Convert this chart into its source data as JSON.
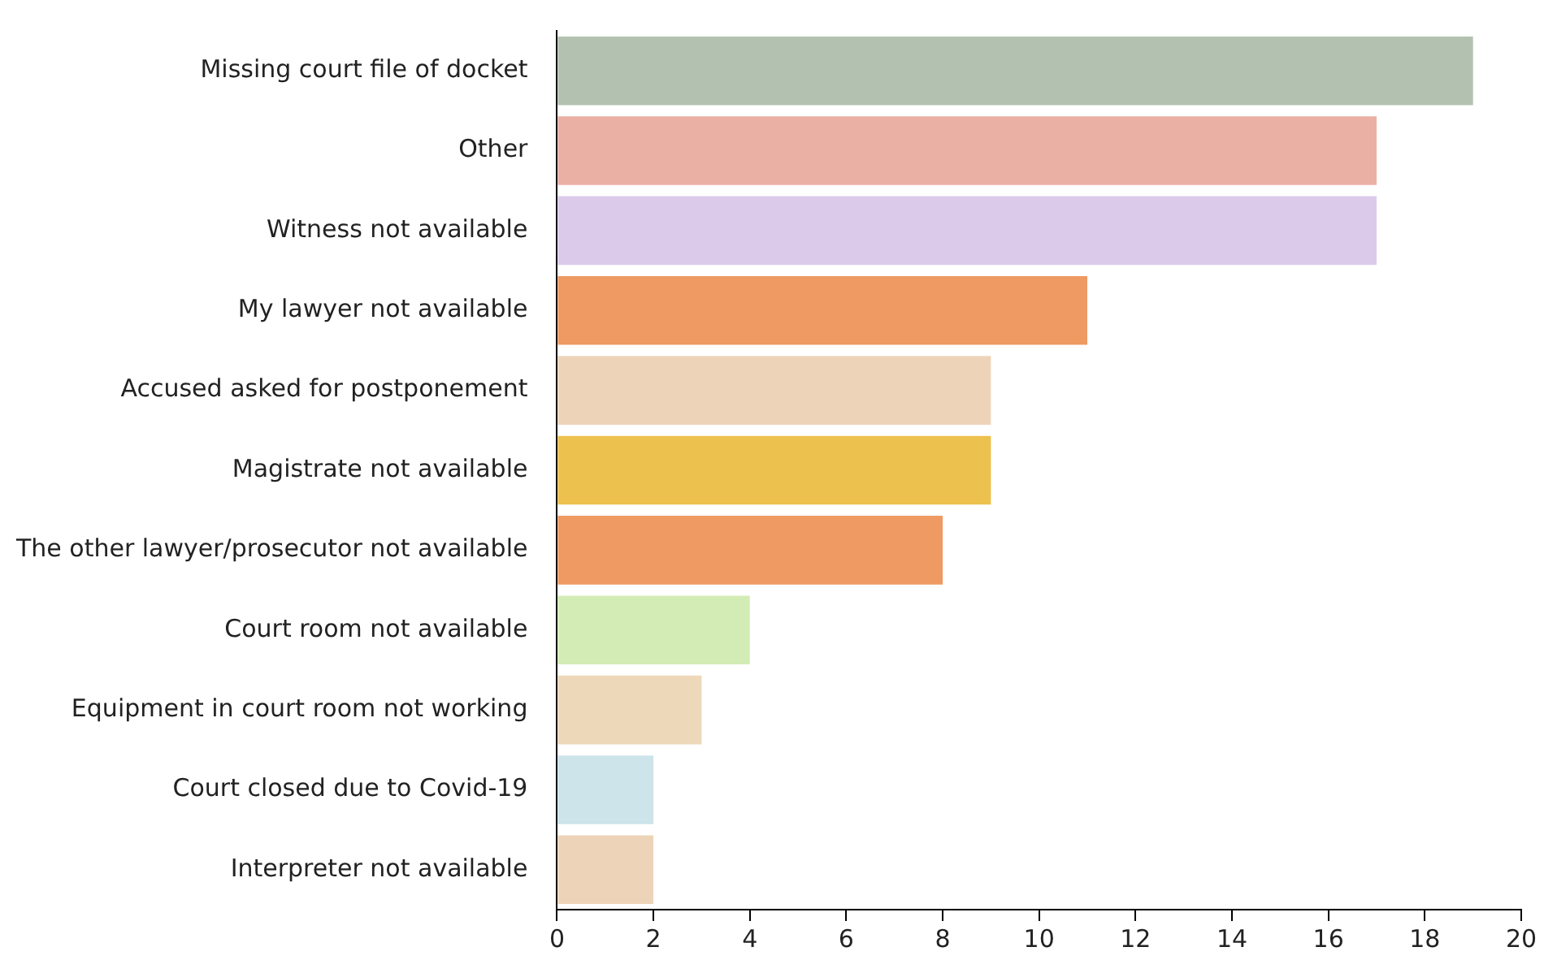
{
  "chart_data": {
    "type": "bar",
    "orientation": "horizontal",
    "categories": [
      "Missing court file of docket",
      "Other",
      "Witness not available",
      "My lawyer not available",
      "Accused asked for postponement",
      "Magistrate not available",
      "The other lawyer/prosecutor not available",
      "Court room not available",
      "Equipment in court room not working",
      "Court closed due to Covid-19",
      "Interpreter not available"
    ],
    "values": [
      19,
      17,
      17,
      11,
      9,
      9,
      8,
      4,
      3,
      2,
      2
    ],
    "colors": [
      "#b3c2b0",
      "#eab0a4",
      "#dccaea",
      "#ee9a62",
      "#edd4b8",
      "#edc14e",
      "#ee9a62",
      "#d3ecb6",
      "#edd8b9",
      "#cce4ea",
      "#edd4b8"
    ],
    "xlim": [
      0,
      20
    ],
    "xticks": [
      0,
      2,
      4,
      6,
      8,
      10,
      12,
      14,
      16,
      18,
      20
    ],
    "grid": false,
    "legend": false
  }
}
